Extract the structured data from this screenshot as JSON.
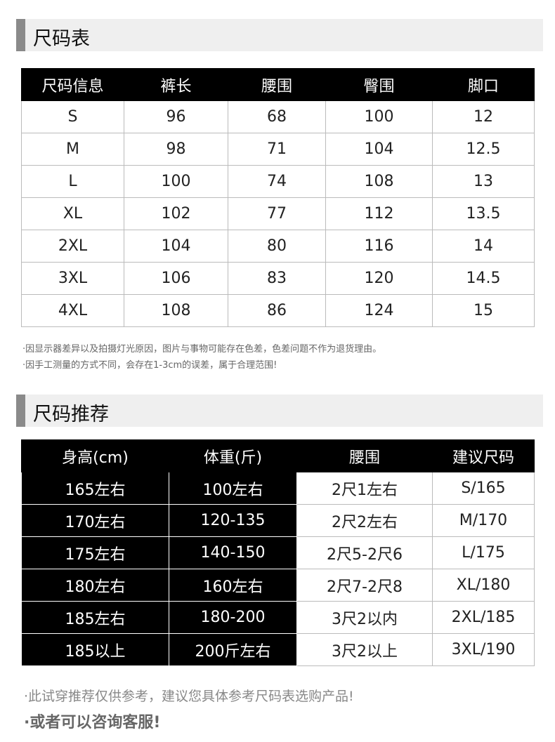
{
  "section1": {
    "title": "尺码表"
  },
  "size_table": {
    "headers": [
      "尺码信息",
      "裤长",
      "腰围",
      "臀围",
      "脚口"
    ],
    "rows": [
      [
        "S",
        "96",
        "68",
        "100",
        "12"
      ],
      [
        "M",
        "98",
        "71",
        "104",
        "12.5"
      ],
      [
        "L",
        "100",
        "74",
        "108",
        "13"
      ],
      [
        "XL",
        "102",
        "77",
        "112",
        "13.5"
      ],
      [
        "2XL",
        "104",
        "80",
        "116",
        "14"
      ],
      [
        "3XL",
        "106",
        "83",
        "120",
        "14.5"
      ],
      [
        "4XL",
        "108",
        "86",
        "124",
        "15"
      ]
    ]
  },
  "notes": [
    "·因显示器差异以及拍摄灯光原因，图片与事物可能存在色差，色差问题不作为退货理由。",
    "·因手工测量的方式不同，会存在1-3cm的误差，属于合理范围!"
  ],
  "section2": {
    "title": "尺码推荐"
  },
  "rec_table": {
    "headers": [
      "身高(cm)",
      "体重(斤)",
      "腰围",
      "建议尺码"
    ],
    "rows": [
      [
        "165左右",
        "100左右",
        "2尺1左右",
        "S/165"
      ],
      [
        "170左右",
        "120-135",
        "2尺2左右",
        "M/170"
      ],
      [
        "175左右",
        "140-150",
        "2尺5-2尺6",
        "L/175"
      ],
      [
        "180左右",
        "160左右",
        "2尺7-2尺8",
        "XL/180"
      ],
      [
        "185左右",
        "180-200",
        "3尺2以内",
        "2XL/185"
      ],
      [
        "185以上",
        "200斤左右",
        "3尺2以上",
        "3XL/190"
      ]
    ]
  },
  "footer": {
    "line1": "·此试穿推荐仅供参考，建议您具体参考尺码表选购产品!",
    "line2": "·或者可以咨询客服!"
  }
}
